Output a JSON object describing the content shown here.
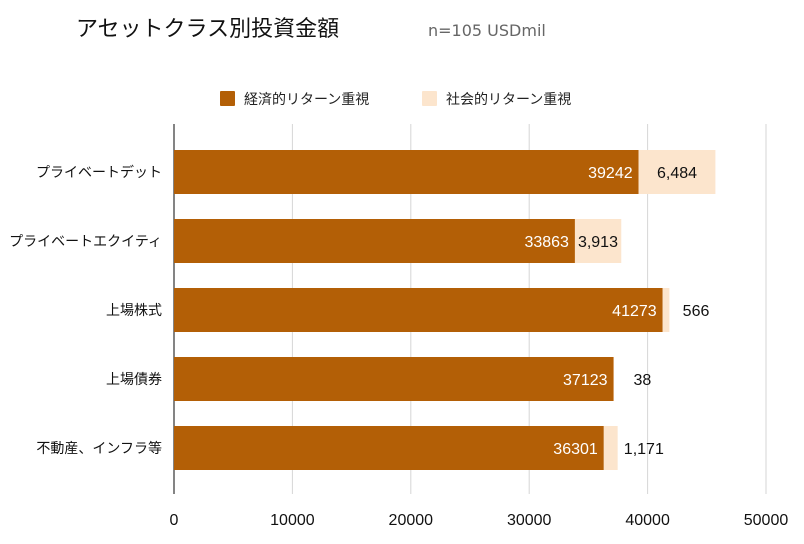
{
  "chart_data": {
    "type": "bar",
    "orientation": "horizontal",
    "stacked": true,
    "title": "アセットクラス別投資金額",
    "subtitle": "n=105 USDmil",
    "categories": [
      "プライベートデット",
      "プライベートエクイティ",
      "上場株式",
      "上場債券",
      "不動産、インフラ等"
    ],
    "series": [
      {
        "name": "経済的リターン重視",
        "color": "#b35f06",
        "values": [
          39242,
          33863,
          41273,
          37123,
          36301
        ],
        "labels": [
          "39242",
          "33863",
          "41273",
          "37123",
          "36301"
        ]
      },
      {
        "name": "社会的リターン重視",
        "color": "#fce5cd",
        "values": [
          6484,
          3913,
          566,
          38,
          1171
        ],
        "labels": [
          "6,484",
          "3,913",
          "566",
          "38",
          "1,171"
        ]
      }
    ],
    "xlim": [
      0,
      50000
    ],
    "xticks": [
      "0",
      "10000",
      "20000",
      "30000",
      "40000",
      "50000"
    ],
    "grid": true,
    "legend_position": "top"
  }
}
